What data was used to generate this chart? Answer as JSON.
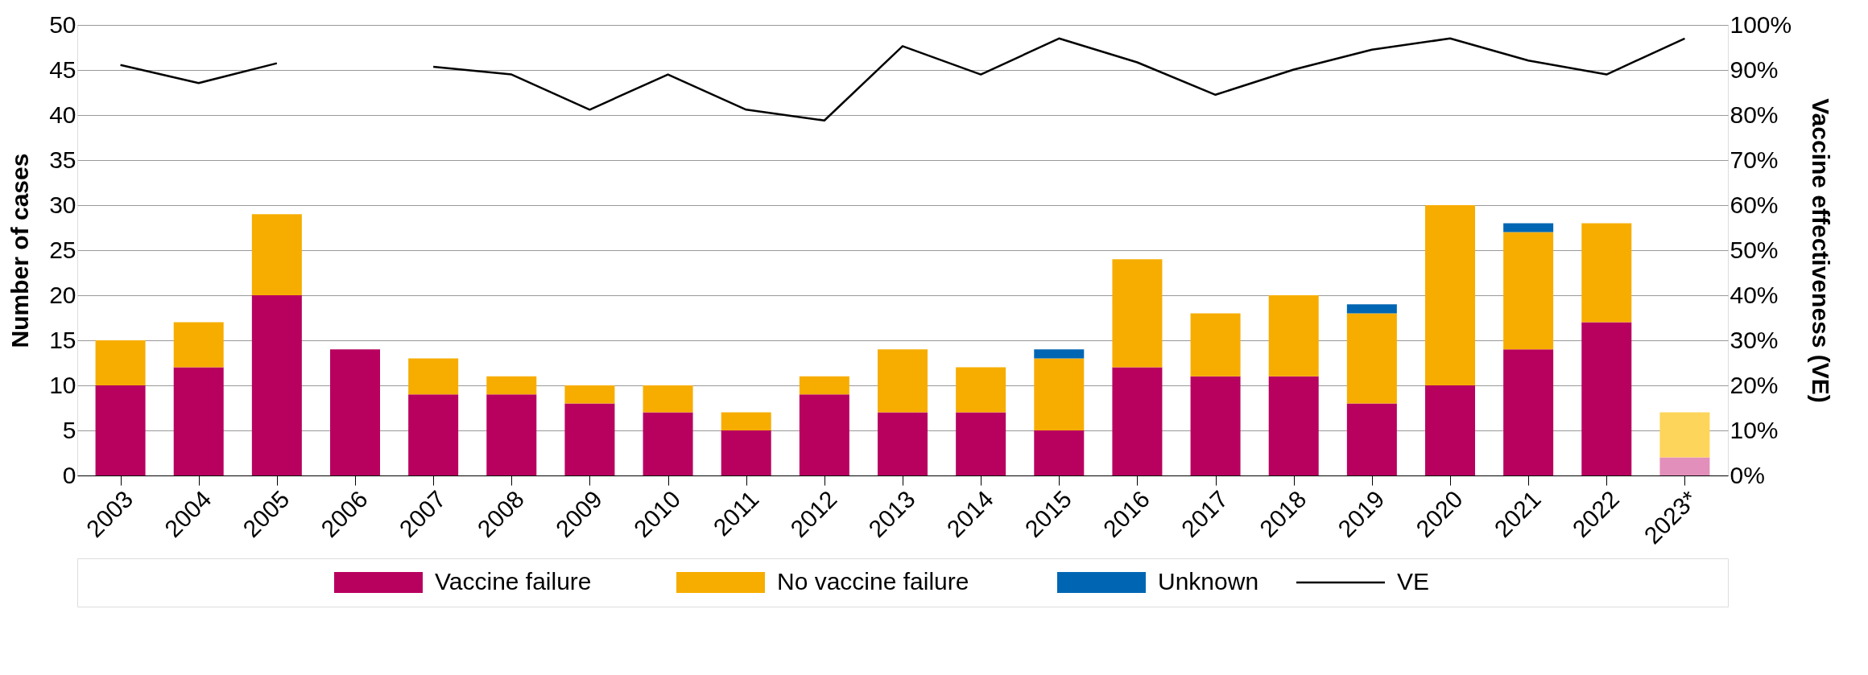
{
  "chart_data": {
    "type": "bar",
    "stacked": true,
    "ylabel": "Number of cases",
    "y2label": "Vaccine effectiveness (VE)",
    "categories": [
      "2003",
      "2004",
      "2005",
      "2006",
      "2007",
      "2008",
      "2009",
      "2010",
      "2011",
      "2012",
      "2013",
      "2014",
      "2015",
      "2016",
      "2017",
      "2018",
      "2019",
      "2020",
      "2021",
      "2022",
      "2023*"
    ],
    "series": [
      {
        "name": "Vaccine failure",
        "color": "#b8005f",
        "colors": [
          "#b8005f",
          "#b8005f",
          "#b8005f",
          "#b8005f",
          "#b8005f",
          "#b8005f",
          "#b8005f",
          "#b8005f",
          "#b8005f",
          "#b8005f",
          "#b8005f",
          "#b8005f",
          "#b8005f",
          "#b8005f",
          "#b8005f",
          "#b8005f",
          "#b8005f",
          "#b8005f",
          "#b8005f",
          "#b8005f",
          "#e38fbb"
        ],
        "values": [
          10,
          12,
          20,
          14,
          9,
          9,
          8,
          7,
          5,
          9,
          7,
          7,
          5,
          12,
          11,
          11,
          8,
          10,
          14,
          17,
          2
        ]
      },
      {
        "name": "No vaccine failure",
        "color": "#f7ad00",
        "colors": [
          "#f7ad00",
          "#f7ad00",
          "#f7ad00",
          "#f7ad00",
          "#f7ad00",
          "#f7ad00",
          "#f7ad00",
          "#f7ad00",
          "#f7ad00",
          "#f7ad00",
          "#f7ad00",
          "#f7ad00",
          "#f7ad00",
          "#f7ad00",
          "#f7ad00",
          "#f7ad00",
          "#f7ad00",
          "#f7ad00",
          "#f7ad00",
          "#f7ad00",
          "#fdd55a"
        ],
        "values": [
          5,
          5,
          9,
          0,
          4,
          2,
          2,
          3,
          2,
          2,
          7,
          5,
          8,
          12,
          7,
          9,
          10,
          20,
          13,
          11,
          5
        ]
      },
      {
        "name": "Unknown",
        "color": "#0066b3",
        "values": [
          0,
          0,
          0,
          0,
          0,
          0,
          0,
          0,
          0,
          0,
          0,
          0,
          1,
          0,
          0,
          0,
          1,
          0,
          1,
          0,
          0
        ]
      },
      {
        "name": "VE",
        "type": "line",
        "axis": "y2",
        "color": "#000000",
        "values": [
          91.1,
          87.1,
          91.5,
          null,
          90.7,
          89.0,
          81.2,
          89.0,
          81.2,
          78.8,
          95.3,
          89.0,
          97.0,
          91.7,
          84.5,
          90.1,
          94.5,
          97.0,
          92.1,
          89.0,
          97.0
        ]
      }
    ],
    "ylim": [
      0,
      50
    ],
    "yticks": [
      0,
      5,
      10,
      15,
      20,
      25,
      30,
      35,
      40,
      45,
      50
    ],
    "y2lim": [
      0,
      100
    ],
    "y2ticks": [
      {
        "value": 0,
        "label": "0%"
      },
      {
        "value": 10,
        "label": "10%"
      },
      {
        "value": 20,
        "label": "20%"
      },
      {
        "value": 30,
        "label": "30%"
      },
      {
        "value": 40,
        "label": "40%"
      },
      {
        "value": 50,
        "label": "50%"
      },
      {
        "value": 60,
        "label": "60%"
      },
      {
        "value": 70,
        "label": "70%"
      },
      {
        "value": 80,
        "label": "80%"
      },
      {
        "value": 90,
        "label": "90%"
      },
      {
        "value": 100,
        "label": "100%"
      }
    ],
    "grid": "y",
    "legend": "bottom"
  }
}
